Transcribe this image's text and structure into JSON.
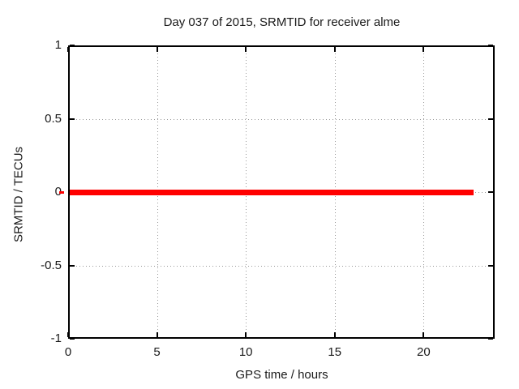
{
  "window": {
    "background": "#ffffff"
  },
  "chart_data": {
    "type": "line",
    "title": "Day 037 of 2015, SRMTID for receiver alme",
    "xlabel": "GPS time / hours",
    "ylabel": "SRMTID / TECUs",
    "xlim": [
      0,
      24
    ],
    "ylim": [
      -1,
      1
    ],
    "x_ticks": [
      0,
      5,
      10,
      15,
      20
    ],
    "y_ticks": [
      1,
      0.5,
      0,
      -0.5,
      -1
    ],
    "grid": "dotted gray, at interior ticks",
    "legend": "none",
    "border_color": "#000000",
    "series": [
      {
        "name": "SRMTID",
        "color": "#ff0000",
        "style": "thick constant horizontal line",
        "points": [
          [
            0,
            0
          ],
          [
            22.8,
            0
          ]
        ]
      }
    ]
  }
}
